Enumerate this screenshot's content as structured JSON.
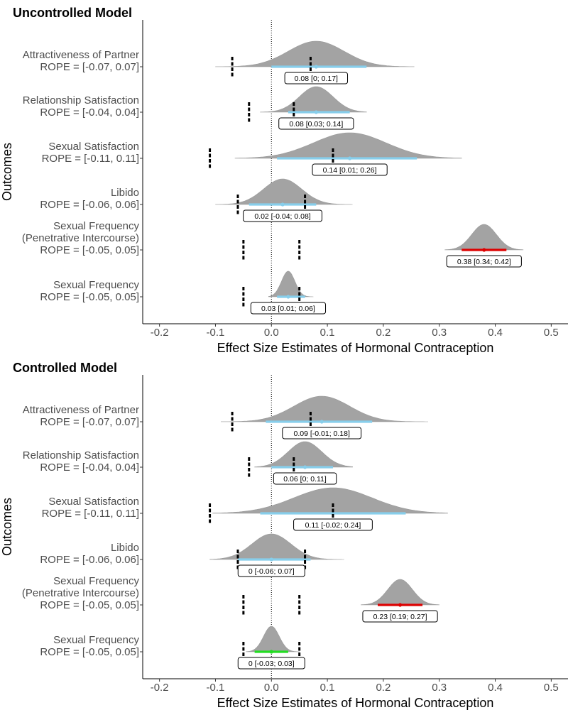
{
  "chart_data": [
    {
      "type": "density-interval",
      "title": "Uncontrolled Model",
      "xlabel": "Effect Size Estimates of Hormonal Contraception",
      "ylabel": "Outcomes",
      "xlim": [
        -0.23,
        0.53
      ],
      "xticks": [
        "-0.2",
        "-0.1",
        "0.0",
        "0.1",
        "0.2",
        "0.3",
        "0.4",
        "0.5"
      ],
      "reference_line": 0,
      "grid": false,
      "outcomes": [
        {
          "label": [
            "Attractiveness of Partner",
            "ROPE = [-0.07, 0.07]"
          ],
          "rope": [
            -0.07,
            0.07
          ],
          "median": 0.08,
          "ci": [
            0.0,
            0.17
          ],
          "dist_range": [
            -0.1,
            0.255
          ],
          "sd": 0.05,
          "interval_color": "#87ceeb",
          "data_label": "0.08 [0; 0.17]"
        },
        {
          "label": [
            "Relationship Satisfaction",
            "ROPE = [-0.04, 0.04]"
          ],
          "rope": [
            -0.04,
            0.04
          ],
          "median": 0.08,
          "ci": [
            0.03,
            0.14
          ],
          "dist_range": [
            -0.02,
            0.17
          ],
          "sd": 0.03,
          "interval_color": "#87ceeb",
          "data_label": "0.08 [0.03; 0.14]"
        },
        {
          "label": [
            "Sexual Satisfaction",
            "ROPE = [-0.11, 0.11]"
          ],
          "rope": [
            -0.11,
            0.11
          ],
          "median": 0.14,
          "ci": [
            0.01,
            0.26
          ],
          "dist_range": [
            -0.065,
            0.34
          ],
          "sd": 0.065,
          "interval_color": "#87ceeb",
          "data_label": "0.14 [0.01; 0.26]"
        },
        {
          "label": [
            "Libido",
            "ROPE = [-0.06, 0.06]"
          ],
          "rope": [
            -0.06,
            0.06
          ],
          "median": 0.02,
          "ci": [
            -0.04,
            0.08
          ],
          "dist_range": [
            -0.1,
            0.145
          ],
          "sd": 0.034,
          "interval_color": "#87ceeb",
          "data_label": "0.02 [-0.04; 0.08]"
        },
        {
          "label": [
            "Sexual Frequency",
            "(Penetrative Intercourse)",
            "ROPE = [-0.05, 0.05]"
          ],
          "rope": [
            -0.05,
            0.05
          ],
          "median": 0.38,
          "ci": [
            0.34,
            0.42
          ],
          "dist_range": [
            0.31,
            0.45
          ],
          "sd": 0.022,
          "interval_color": "#dd0000",
          "data_label": "0.38 [0.34; 0.42]"
        },
        {
          "label": [
            "Sexual Frequency",
            "ROPE = [-0.05, 0.05]"
          ],
          "rope": [
            -0.05,
            0.05
          ],
          "median": 0.03,
          "ci": [
            0.01,
            0.06
          ],
          "dist_range": [
            -0.005,
            0.075
          ],
          "sd": 0.012,
          "interval_color": "#87ceeb",
          "data_label": "0.03 [0.01; 0.06]"
        }
      ]
    },
    {
      "type": "density-interval",
      "title": "Controlled Model",
      "xlabel": "Effect Size Estimates of Hormonal Contraception",
      "ylabel": "Outcomes",
      "xlim": [
        -0.23,
        0.53
      ],
      "xticks": [
        "-0.2",
        "-0.1",
        "0.0",
        "0.1",
        "0.2",
        "0.3",
        "0.4",
        "0.5"
      ],
      "reference_line": 0,
      "grid": false,
      "outcomes": [
        {
          "label": [
            "Attractiveness of Partner",
            "ROPE = [-0.07, 0.07]"
          ],
          "rope": [
            -0.07,
            0.07
          ],
          "median": 0.09,
          "ci": [
            -0.01,
            0.18
          ],
          "dist_range": [
            -0.09,
            0.28
          ],
          "sd": 0.05,
          "interval_color": "#87ceeb",
          "data_label": "0.09 [-0.01; 0.18]"
        },
        {
          "label": [
            "Relationship Satisfaction",
            "ROPE = [-0.04, 0.04]"
          ],
          "rope": [
            -0.04,
            0.04
          ],
          "median": 0.06,
          "ci": [
            0.0,
            0.11
          ],
          "dist_range": [
            -0.03,
            0.145
          ],
          "sd": 0.03,
          "interval_color": "#87ceeb",
          "data_label": "0.06 [0; 0.11]"
        },
        {
          "label": [
            "Sexual Satisfaction",
            "ROPE = [-0.11, 0.11]"
          ],
          "rope": [
            -0.11,
            0.11
          ],
          "median": 0.11,
          "ci": [
            -0.02,
            0.24
          ],
          "dist_range": [
            -0.105,
            0.315
          ],
          "sd": 0.07,
          "interval_color": "#87ceeb",
          "data_label": "0.11 [-0.02; 0.24]"
        },
        {
          "label": [
            "Libido",
            "ROPE = [-0.06, 0.06]"
          ],
          "rope": [
            -0.06,
            0.06
          ],
          "median": 0.0,
          "ci": [
            -0.06,
            0.07
          ],
          "dist_range": [
            -0.11,
            0.13
          ],
          "sd": 0.035,
          "interval_color": "#87ceeb",
          "data_label": "0 [-0.06; 0.07]"
        },
        {
          "label": [
            "Sexual Frequency",
            "(Penetrative Intercourse)",
            "ROPE = [-0.05, 0.05]"
          ],
          "rope": [
            -0.05,
            0.05
          ],
          "median": 0.23,
          "ci": [
            0.19,
            0.27
          ],
          "dist_range": [
            0.16,
            0.3
          ],
          "sd": 0.022,
          "interval_color": "#dd0000",
          "data_label": "0.23 [0.19; 0.27]"
        },
        {
          "label": [
            "Sexual Frequency",
            "ROPE = [-0.05, 0.05]"
          ],
          "rope": [
            -0.05,
            0.05
          ],
          "median": 0.0,
          "ci": [
            -0.03,
            0.03
          ],
          "dist_range": [
            -0.045,
            0.05
          ],
          "sd": 0.014,
          "interval_color": "#22dd22",
          "data_label": "0 [-0.03; 0.03]"
        }
      ]
    }
  ],
  "colors": {
    "density_fill": "#a3a3a3",
    "rope_line": "#000000",
    "axis": "#000000",
    "tick_text": "#4d4d4d"
  }
}
